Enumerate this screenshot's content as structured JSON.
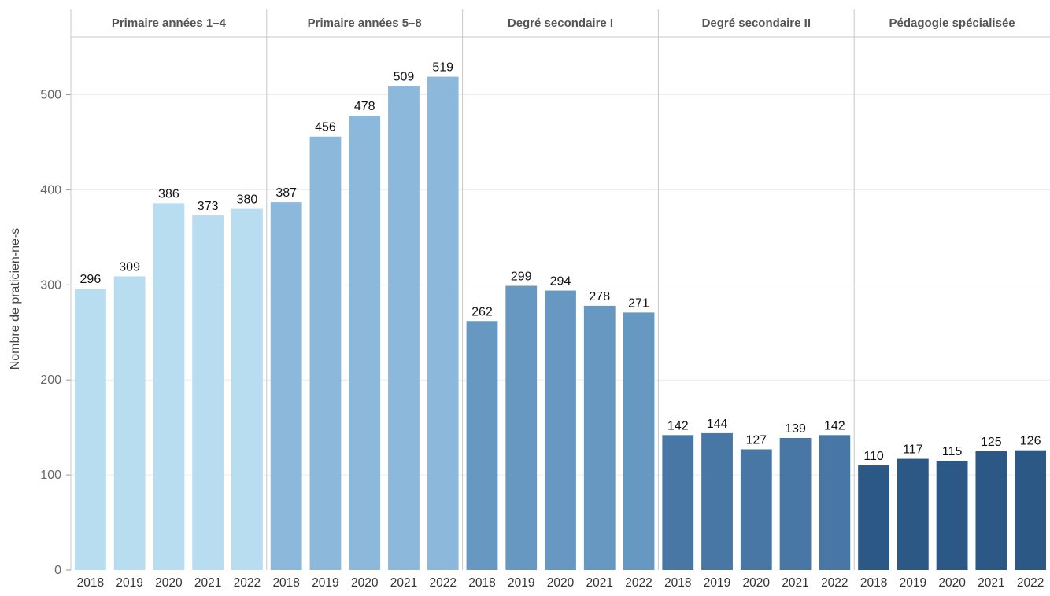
{
  "chart_data": {
    "type": "bar",
    "ylabel": "Nombre de praticien-ne-s",
    "ylim": [
      0,
      560
    ],
    "yticks": [
      0,
      100,
      200,
      300,
      400,
      500
    ],
    "grid": true,
    "categories": [
      "2018",
      "2019",
      "2020",
      "2021",
      "2022"
    ],
    "panels": [
      {
        "title": "Primaire années 1–4",
        "color": "#b8ddf0",
        "values": [
          296,
          309,
          386,
          373,
          380
        ]
      },
      {
        "title": "Primaire années 5–8",
        "color": "#8cb8dc",
        "values": [
          387,
          456,
          478,
          509,
          519
        ]
      },
      {
        "title": "Degré secondaire I",
        "color": "#6698c2",
        "values": [
          262,
          299,
          294,
          278,
          271
        ]
      },
      {
        "title": "Degré secondaire II",
        "color": "#4876a5",
        "values": [
          142,
          144,
          127,
          139,
          142
        ]
      },
      {
        "title": "Pédagogie spécialisée",
        "color": "#2c5886",
        "values": [
          110,
          117,
          115,
          125,
          126
        ]
      }
    ]
  }
}
